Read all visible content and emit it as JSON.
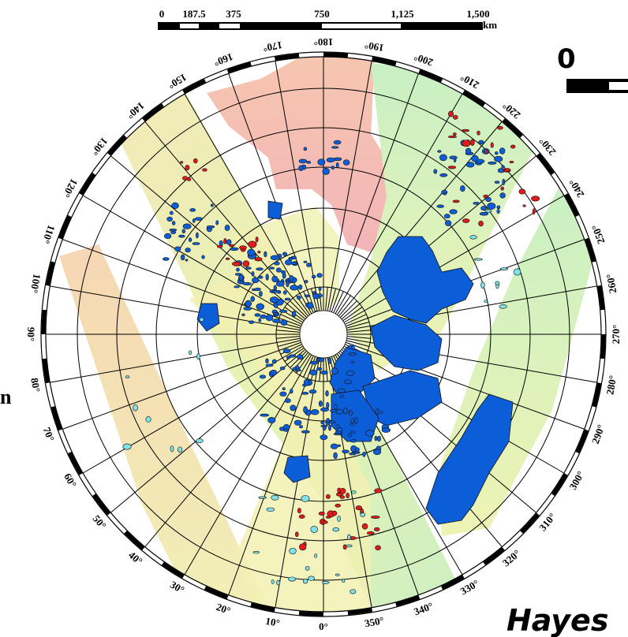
{
  "scale_bar": {
    "ticks": [
      "0",
      "187.5",
      "375",
      "750",
      "1,125",
      "1,500"
    ],
    "unit": "km"
  },
  "longitude_labels": [
    "0°",
    "10°",
    "20°",
    "30°",
    "40°",
    "50°",
    "60°",
    "70°",
    "80°",
    "90°",
    "100°",
    "110°",
    "120°",
    "130°",
    "140°",
    "150°",
    "160°",
    "170°",
    "180°",
    "190°",
    "200°",
    "210°",
    "220°",
    "230°",
    "240°",
    "250°",
    "260°",
    "270°",
    "280°",
    "290°",
    "300°",
    "310°",
    "320°",
    "330°",
    "340°",
    "350°"
  ],
  "cropped_text": {
    "right_digit": "0",
    "left_fragment": "n",
    "author": "Hayes"
  },
  "colors": {
    "lakes": "#0b5ed8",
    "dry_lakes": "#e11b1b",
    "partial_lakes": "#7fe0e8",
    "coverage_yellow": "#f2f2b4",
    "coverage_pink": "#f4b4b4",
    "coverage_green": "#c4eec0",
    "coverage_peach": "#f6d4b0"
  }
}
